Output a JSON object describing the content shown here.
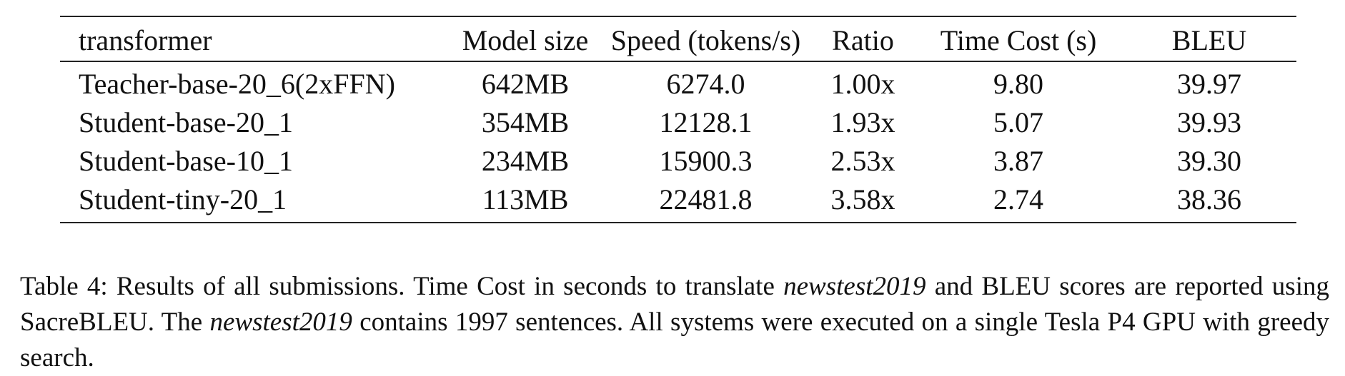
{
  "table": {
    "headers": [
      "transformer",
      "Model size",
      "Speed (tokens/s)",
      "Ratio",
      "Time Cost (s)",
      "BLEU"
    ],
    "rows": [
      [
        "Teacher-base-20_6(2xFFN)",
        "642MB",
        "6274.0",
        "1.00x",
        "9.80",
        "39.97"
      ],
      [
        "Student-base-20_1",
        "354MB",
        "12128.1",
        "1.93x",
        "5.07",
        "39.93"
      ],
      [
        "Student-base-10_1",
        "234MB",
        "15900.3",
        "2.53x",
        "3.87",
        "39.30"
      ],
      [
        "Student-tiny-20_1",
        "113MB",
        "22481.8",
        "3.58x",
        "2.74",
        "38.36"
      ]
    ]
  },
  "caption": {
    "part1": "Table 4: Results of all submissions. Time Cost in seconds to translate ",
    "em1": "newstest2019",
    "part2": " and BLEU scores are reported using SacreBLEU. The ",
    "em2": "newstest2019",
    "part3": " contains 1997 sentences.  All systems were executed on a single Tesla P4 GPU with greedy search."
  }
}
